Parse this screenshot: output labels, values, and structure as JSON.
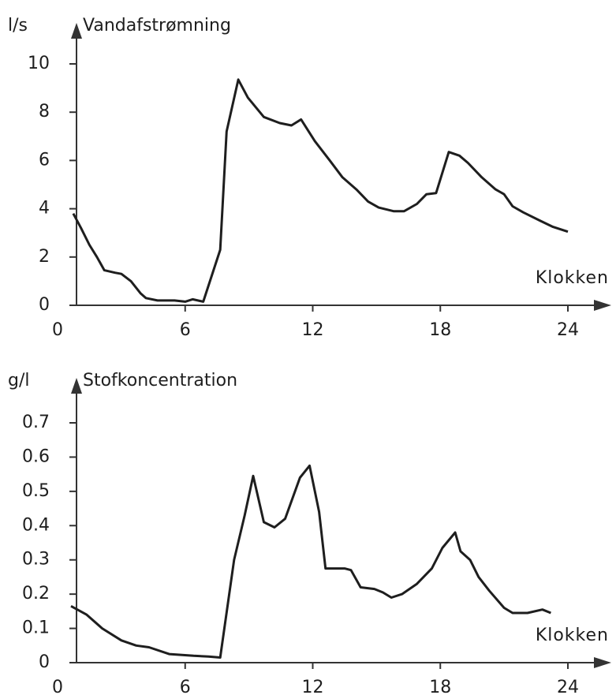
{
  "chart_data": [
    {
      "type": "line",
      "title": "Vandafstrømning",
      "ylabel": "l/s",
      "xlabel": "Klokken",
      "color": "#1e1e1e",
      "x": [
        0.74,
        1.1,
        1.5,
        1.85,
        2.2,
        2.7,
        3.0,
        3.45,
        3.9,
        4.15,
        4.7,
        5.5,
        6.0,
        6.35,
        6.85,
        7.65,
        7.95,
        8.5,
        8.95,
        9.7,
        10.45,
        11.0,
        11.45,
        12.1,
        12.8,
        13.4,
        14.05,
        14.6,
        15.1,
        15.8,
        16.3,
        16.9,
        17.35,
        17.8,
        18.4,
        18.9,
        19.3,
        19.95,
        20.6,
        21.0,
        21.4,
        21.9,
        22.7,
        23.3,
        24.0
      ],
      "values": [
        3.8,
        3.2,
        2.5,
        2.0,
        1.45,
        1.35,
        1.3,
        1.0,
        0.5,
        0.3,
        0.2,
        0.2,
        0.15,
        0.25,
        0.15,
        2.3,
        7.2,
        9.35,
        8.6,
        7.8,
        7.55,
        7.45,
        7.7,
        6.8,
        6.0,
        5.3,
        4.8,
        4.3,
        4.05,
        3.9,
        3.9,
        4.2,
        4.6,
        4.65,
        6.35,
        6.2,
        5.9,
        5.3,
        4.8,
        4.6,
        4.1,
        3.85,
        3.5,
        3.25,
        3.05
      ],
      "xlim": [
        0,
        24
      ],
      "xticks": [
        0,
        6,
        12,
        18,
        24
      ],
      "ylim": [
        0,
        10
      ],
      "yticks": [
        0,
        2,
        4,
        6,
        8,
        10
      ]
    },
    {
      "type": "line",
      "title": "Stofkoncentration",
      "ylabel": "g/l",
      "xlabel": "Klokken",
      "color": "#1e1e1e",
      "x": [
        0.63,
        1.37,
        2.1,
        3.0,
        3.7,
        4.3,
        5.25,
        6.4,
        7.1,
        7.65,
        8.3,
        8.8,
        9.2,
        9.7,
        10.2,
        10.7,
        11.4,
        11.85,
        12.3,
        12.6,
        13.5,
        13.8,
        14.25,
        14.9,
        15.3,
        15.7,
        16.2,
        16.9,
        17.6,
        18.1,
        18.7,
        18.95,
        19.4,
        19.8,
        20.3,
        21.0,
        21.4,
        22.1,
        22.8,
        23.2
      ],
      "values": [
        0.165,
        0.14,
        0.1,
        0.065,
        0.05,
        0.045,
        0.025,
        0.02,
        0.018,
        0.015,
        0.3,
        0.43,
        0.545,
        0.41,
        0.395,
        0.42,
        0.54,
        0.575,
        0.44,
        0.275,
        0.275,
        0.27,
        0.22,
        0.215,
        0.205,
        0.19,
        0.2,
        0.23,
        0.275,
        0.335,
        0.38,
        0.325,
        0.3,
        0.25,
        0.21,
        0.16,
        0.145,
        0.145,
        0.155,
        0.145
      ],
      "xlim": [
        0,
        24
      ],
      "xticks": [
        0,
        6,
        12,
        18,
        24
      ],
      "ylim": [
        0,
        0.7
      ],
      "yticks": [
        0,
        0.1,
        0.2,
        0.3,
        0.4,
        0.5,
        0.6,
        0.7
      ]
    }
  ]
}
